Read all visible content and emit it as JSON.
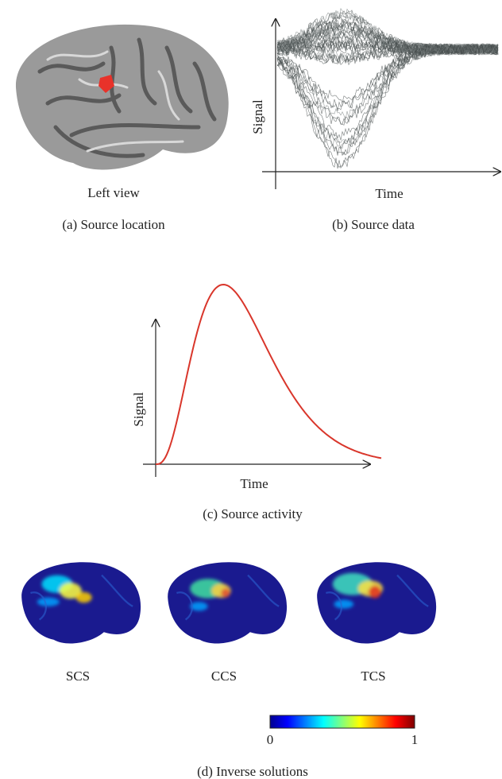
{
  "panels": [
    {
      "label": "(a) Source location",
      "view": "Left view"
    },
    {
      "label": "(b) Source data",
      "y_axis": "Signal",
      "x_axis": "Time"
    },
    {
      "label": "(c) Source activity",
      "y_axis": "Signal",
      "x_axis": "Time"
    },
    {
      "label": "(d) Inverse solutions",
      "methods": [
        "SCS",
        "CCS",
        "TCS"
      ],
      "colorbar": {
        "min": "0",
        "max": "1"
      }
    }
  ]
}
